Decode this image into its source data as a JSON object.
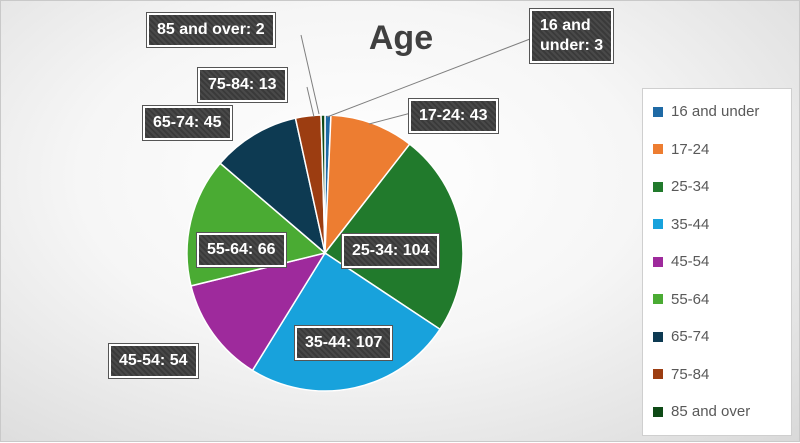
{
  "chart_data": {
    "type": "pie",
    "title": "Age",
    "legend_position": "right",
    "slices": [
      {
        "name": "16 and under",
        "value": 3,
        "color": "#1f6aa5",
        "label": "16 and\nunder: 3"
      },
      {
        "name": "17-24",
        "value": 43,
        "color": "#ed7d31",
        "label": "17-24: 43"
      },
      {
        "name": "25-34",
        "value": 104,
        "color": "#217a2c",
        "label": "25-34: 104"
      },
      {
        "name": "35-44",
        "value": 107,
        "color": "#18a2dc",
        "label": "35-44: 107"
      },
      {
        "name": "45-54",
        "value": 54,
        "color": "#9e2a9c",
        "label": "45-54: 54"
      },
      {
        "name": "55-64",
        "value": 66,
        "color": "#4aab33",
        "label": "55-64: 66"
      },
      {
        "name": "65-74",
        "value": 45,
        "color": "#0d3a52",
        "label": "65-74: 45"
      },
      {
        "name": "75-84",
        "value": 13,
        "color": "#9c3d11",
        "label": "75-84: 13"
      },
      {
        "name": "85 and over",
        "value": 2,
        "color": "#0e4a16",
        "label": "85 and over: 2"
      }
    ]
  }
}
